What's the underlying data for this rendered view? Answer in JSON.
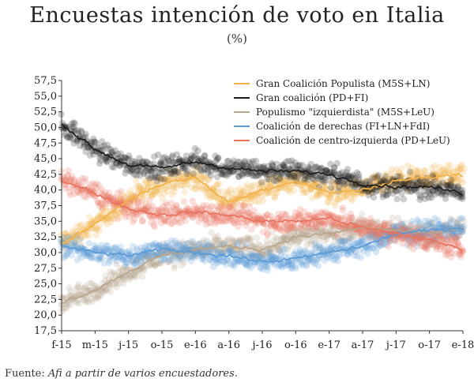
{
  "chart_data": {
    "type": "line",
    "title": "Encuestas intención de voto en Italia",
    "subtitle": "(%)",
    "xlabel": "",
    "ylabel": "",
    "x": [
      "f-15",
      "m-15",
      "j-15",
      "o-15",
      "e-16",
      "a-16",
      "j-16",
      "o-16",
      "e-17",
      "a-17",
      "j-17",
      "o-17",
      "e-18"
    ],
    "ylim": [
      17.5,
      57.5
    ],
    "yticks": [
      "57,5",
      "55,0",
      "52,5",
      "50,0",
      "47,5",
      "45,0",
      "42,5",
      "40,0",
      "37,5",
      "35,0",
      "32,5",
      "30,0",
      "27,5",
      "25,0",
      "22,5",
      "20,0",
      "17,5"
    ],
    "grid": false,
    "legend_position": "top-right",
    "series": [
      {
        "name": "Gran Coalición Populista (M5S+LN)",
        "color": "#f2b24a",
        "values": [
          31.5,
          34.5,
          38.5,
          41.0,
          42.0,
          38.0,
          40.0,
          41.5,
          39.5,
          40.0,
          41.5,
          42.0,
          42.5
        ]
      },
      {
        "name": "Gran coalición (PD+FI)",
        "color": "#1a1a1a",
        "values": [
          50.5,
          46.5,
          44.0,
          43.5,
          44.5,
          43.5,
          43.0,
          43.0,
          42.5,
          41.0,
          40.5,
          40.5,
          39.5
        ]
      },
      {
        "name": "Populismo \"izquierdista\" (M5S+LeU)",
        "color": "#b8a58b",
        "values": [
          22.0,
          24.0,
          27.0,
          29.5,
          30.5,
          31.0,
          30.5,
          32.5,
          33.0,
          34.0,
          33.5,
          33.0,
          34.0
        ]
      },
      {
        "name": "Coalición de derechas (FI+LN+FdI)",
        "color": "#5b9bd5",
        "values": [
          31.0,
          30.0,
          29.5,
          30.5,
          30.0,
          29.5,
          28.5,
          29.0,
          30.0,
          31.0,
          33.0,
          33.5,
          34.0
        ]
      },
      {
        "name": "Coalición de centro-izquierda (PD+LeU)",
        "color": "#e8735f",
        "values": [
          41.5,
          39.5,
          37.0,
          36.0,
          36.5,
          36.0,
          35.0,
          35.0,
          35.5,
          34.0,
          33.0,
          32.0,
          30.5
        ]
      }
    ]
  },
  "source": {
    "prefix": "Fuente: ",
    "text": "Afi a partir de varios encuestadores."
  }
}
